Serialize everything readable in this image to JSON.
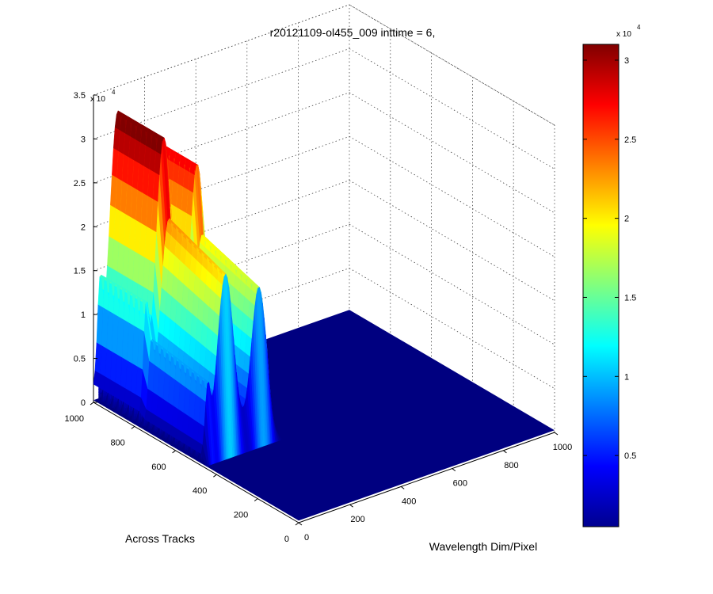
{
  "chart_data": {
    "type": "surface3d",
    "title": "r20121109-ol455_009 inttime = 6,",
    "xlabel": "Wavelength Dim/Pixel",
    "ylabel": "Across Tracks",
    "zlabel": "",
    "xlim": [
      0,
      1000
    ],
    "ylim": [
      0,
      1000
    ],
    "zlim": [
      0,
      35000
    ],
    "x_ticks": [
      "0",
      "200",
      "400",
      "600",
      "800",
      "1000"
    ],
    "y_ticks": [
      "0",
      "200",
      "400",
      "600",
      "800",
      "1000"
    ],
    "z_ticks": [
      "0",
      "0.5",
      "1",
      "1.5",
      "2",
      "2.5",
      "3",
      "3.5"
    ],
    "z_multiplier": "x 10",
    "z_multiplier_exp": "4",
    "colormap": "jet",
    "colorbar": {
      "ticks": [
        "0.5",
        "1",
        "1.5",
        "2",
        "2.5",
        "3"
      ],
      "range": [
        500,
        31000
      ],
      "multiplier": "x 10",
      "multiplier_exp": "4"
    },
    "grid": true,
    "profile_peaks": [
      {
        "position": "x≈60-120",
        "peak_at_y_1000": 31000,
        "peak_at_y_600": 20000
      },
      {
        "position": "x≈200-260",
        "peak_at_y_1000": 27000,
        "peak_at_y_600": 18000
      },
      {
        "position": "x≈20-40",
        "peak_at_y_1000": 11000,
        "peak_at_y_600": 6000
      }
    ]
  }
}
